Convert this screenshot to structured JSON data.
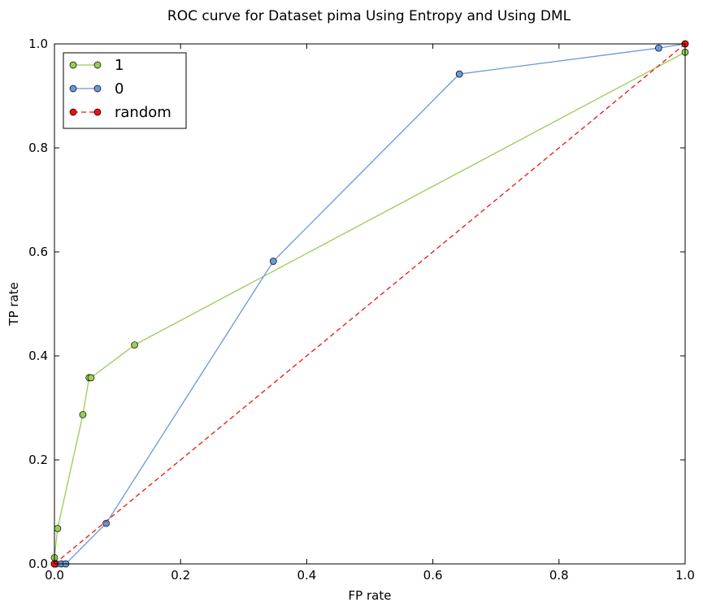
{
  "chart_data": {
    "type": "line",
    "title": "ROC curve for Dataset pima Using Entropy and Using DML",
    "xlabel": "FP rate",
    "ylabel": "TP rate",
    "xlim": [
      0.0,
      1.0
    ],
    "ylim": [
      0.0,
      1.0
    ],
    "xticks": [
      "0.0",
      "0.2",
      "0.4",
      "0.6",
      "0.8",
      "1.0"
    ],
    "yticks": [
      "0.0",
      "0.2",
      "0.4",
      "0.6",
      "0.8",
      "1.0"
    ],
    "legend_position": "top-left",
    "series": [
      {
        "name": "1",
        "color": "#99cc55",
        "style": "solid",
        "marker": "circle",
        "points": [
          [
            0.0,
            0.0
          ],
          [
            0.0,
            0.012
          ],
          [
            0.005,
            0.068
          ],
          [
            0.045,
            0.287
          ],
          [
            0.055,
            0.358
          ],
          [
            0.058,
            0.358
          ],
          [
            0.127,
            0.421
          ],
          [
            1.0,
            0.984
          ]
        ]
      },
      {
        "name": "0",
        "color": "#6699dd",
        "style": "solid",
        "marker": "circle",
        "points": [
          [
            0.0,
            0.0
          ],
          [
            0.003,
            0.0
          ],
          [
            0.011,
            0.0
          ],
          [
            0.018,
            0.0
          ],
          [
            0.082,
            0.078
          ],
          [
            0.347,
            0.582
          ],
          [
            0.642,
            0.942
          ],
          [
            0.958,
            0.992
          ],
          [
            1.0,
            1.0
          ]
        ]
      },
      {
        "name": "random",
        "color": "#ee1111",
        "style": "dashed",
        "marker": "circle",
        "points": [
          [
            0.0,
            0.0
          ],
          [
            1.0,
            1.0
          ]
        ]
      }
    ]
  }
}
